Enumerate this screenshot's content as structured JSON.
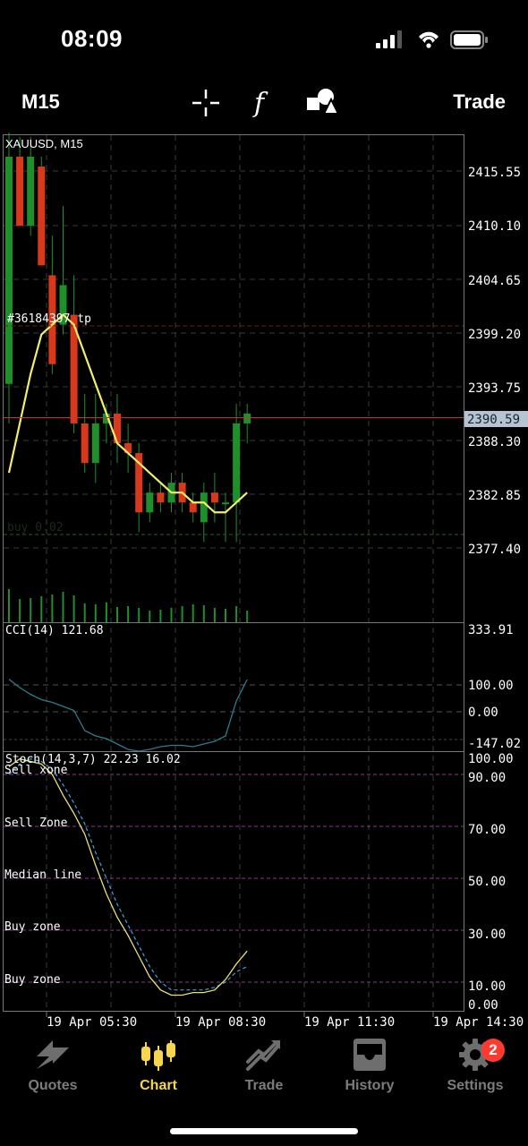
{
  "status": {
    "time": "08:09"
  },
  "toolbar": {
    "timeframe": "M15",
    "trade_label": "Trade",
    "icons": [
      "crosshair-icon",
      "function-icon",
      "objects-icon"
    ]
  },
  "chart": {
    "symbol_label": "XAUUSD, M15",
    "order_label": "#36184397 tp",
    "buy_label": "buy 0.02",
    "price_ticks": [
      "2415.55",
      "2410.10",
      "2404.65",
      "2399.20",
      "2393.75",
      "2388.30",
      "2382.85",
      "2377.40"
    ],
    "current_price": "2390.59",
    "cci": {
      "label": "CCI(14) 121.68",
      "ticks": [
        "333.91",
        "100.00",
        "0.00",
        "-147.02"
      ]
    },
    "stoch": {
      "label": "Stoch(14,3,7) 22.23 16.02",
      "ticks": [
        "100.00",
        "90.00",
        "70.00",
        "50.00",
        "30.00",
        "10.00",
        "0.00"
      ],
      "levels": [
        "Sell xone",
        "Sell Zone",
        "Median line",
        "Buy zone",
        "Buy zone"
      ]
    },
    "time_ticks": [
      "19 Apr 05:30",
      "19 Apr 08:30",
      "19 Apr 11:30",
      "19 Apr 14:30"
    ],
    "colors": {
      "bull": "#1e8f2a",
      "bear": "#d8391c",
      "ma": "#f2ee6b",
      "price_line": "#c0392b",
      "cci": "#2c7b8f",
      "stoch_main": "#e9e07a",
      "stoch_signal": "#3aa4d8",
      "level": "#8a3a8a",
      "grid": "#3a3a3a"
    }
  },
  "chart_data": {
    "type": "candlestick",
    "symbol": "XAUUSD",
    "timeframe": "M15",
    "candles": [
      {
        "o": 2394,
        "h": 2421,
        "l": 2390,
        "c": 2417
      },
      {
        "o": 2417,
        "h": 2419,
        "l": 2410,
        "c": 2410
      },
      {
        "o": 2410,
        "h": 2419,
        "l": 2409,
        "c": 2417
      },
      {
        "o": 2416,
        "h": 2417,
        "l": 2406,
        "c": 2406
      },
      {
        "o": 2405,
        "h": 2409,
        "l": 2395,
        "c": 2396
      },
      {
        "o": 2400,
        "h": 2412,
        "l": 2399,
        "c": 2404
      },
      {
        "o": 2401,
        "h": 2405,
        "l": 2389,
        "c": 2390
      },
      {
        "o": 2390,
        "h": 2393,
        "l": 2385,
        "c": 2386
      },
      {
        "o": 2386,
        "h": 2393,
        "l": 2384,
        "c": 2390
      },
      {
        "o": 2390,
        "h": 2392,
        "l": 2388,
        "c": 2391
      },
      {
        "o": 2391,
        "h": 2393,
        "l": 2386,
        "c": 2388
      },
      {
        "o": 2388,
        "h": 2390,
        "l": 2385,
        "c": 2387
      },
      {
        "o": 2387,
        "h": 2388,
        "l": 2379,
        "c": 2381
      },
      {
        "o": 2381,
        "h": 2384,
        "l": 2380,
        "c": 2383
      },
      {
        "o": 2383,
        "h": 2384,
        "l": 2381,
        "c": 2382
      },
      {
        "o": 2382,
        "h": 2385,
        "l": 2381,
        "c": 2384
      },
      {
        "o": 2384,
        "h": 2385,
        "l": 2381,
        "c": 2382
      },
      {
        "o": 2382,
        "h": 2383,
        "l": 2380,
        "c": 2381
      },
      {
        "o": 2380,
        "h": 2384,
        "l": 2378,
        "c": 2383
      },
      {
        "o": 2383,
        "h": 2385,
        "l": 2380,
        "c": 2382
      },
      {
        "o": 2382,
        "h": 2383,
        "l": 2378,
        "c": 2382
      },
      {
        "o": 2382,
        "h": 2392,
        "l": 2378,
        "c": 2390
      },
      {
        "o": 2390,
        "h": 2392,
        "l": 2388,
        "c": 2391
      }
    ],
    "ma": [
      2385,
      2390,
      2395,
      2399,
      2400,
      2401,
      2400,
      2397,
      2394,
      2391,
      2388,
      2387,
      2386,
      2385,
      2384,
      2383,
      2383,
      2382,
      2382,
      2381,
      2381,
      2382,
      2383
    ],
    "volume": [
      37,
      26,
      27,
      29,
      31,
      34,
      30,
      21,
      20,
      22,
      17,
      18,
      16,
      13,
      14,
      16,
      18,
      20,
      19,
      16,
      15,
      18,
      13
    ],
    "cci": [
      121,
      90,
      65,
      45,
      35,
      20,
      5,
      -70,
      -90,
      -100,
      -120,
      -140,
      -147,
      -140,
      -130,
      -125,
      -125,
      -130,
      -120,
      -110,
      -90,
      40,
      120
    ],
    "stoch_main": [
      93,
      96,
      95,
      94,
      90,
      82,
      75,
      67,
      55,
      44,
      35,
      28,
      20,
      12,
      7,
      5,
      5,
      6,
      6,
      7,
      11,
      17,
      22
    ],
    "stoch_signal": [
      90,
      94,
      96,
      95,
      92,
      86,
      79,
      71,
      60,
      50,
      40,
      32,
      24,
      16,
      10,
      7,
      7,
      7,
      7,
      8,
      10,
      14,
      16
    ],
    "current_price": 2390.59,
    "tp_level": 2399.2,
    "entry_level": 2379
  }
}
